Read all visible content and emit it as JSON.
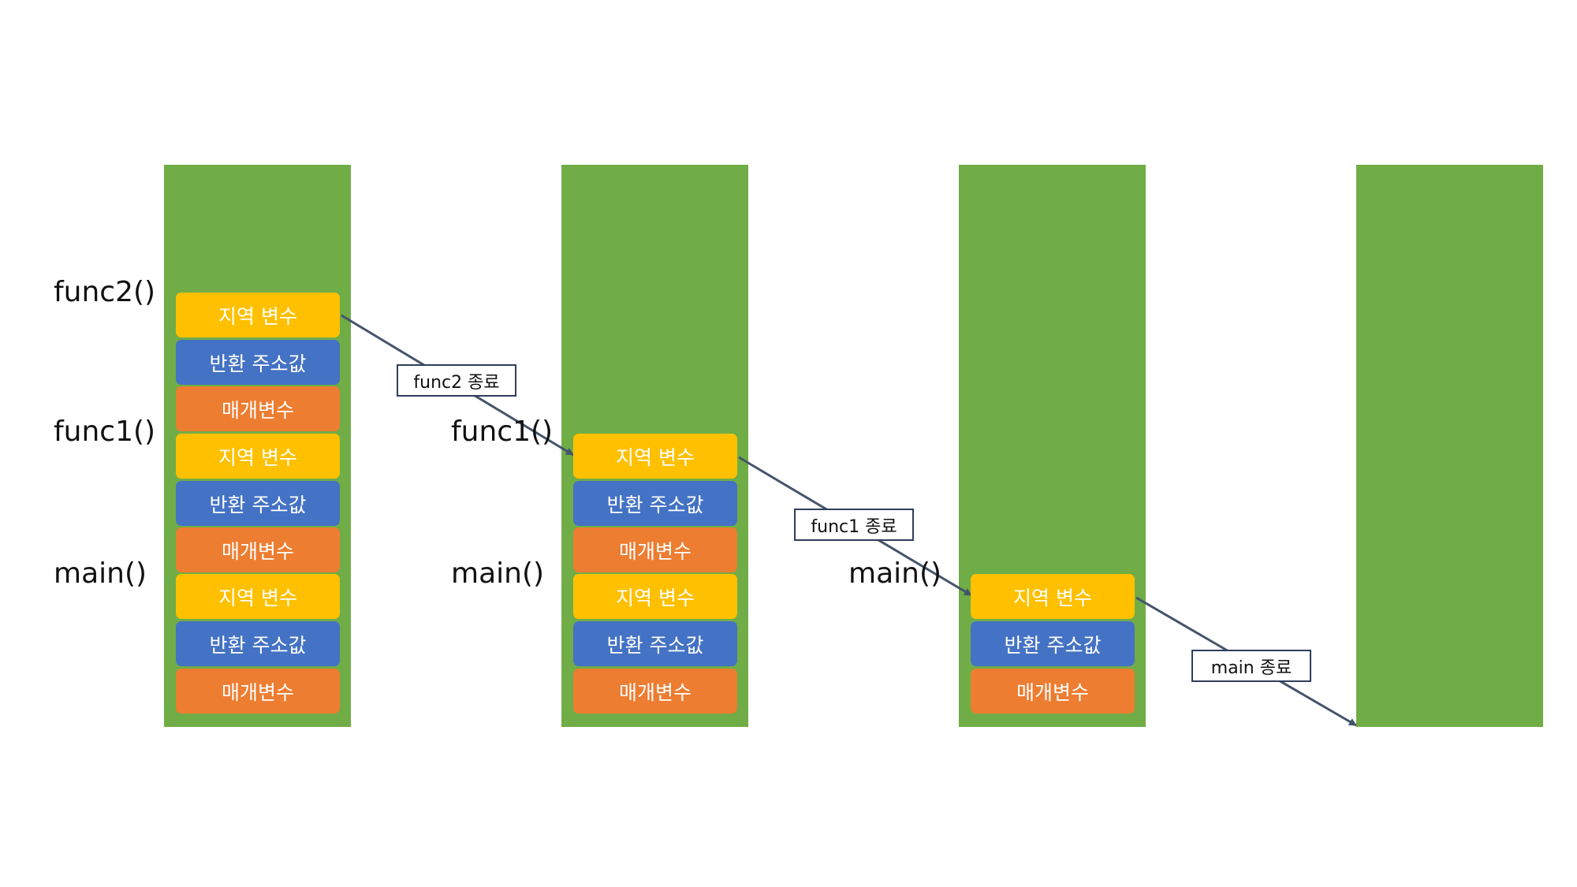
{
  "frames": {
    "func2": "func2()",
    "func1": "func1()",
    "main": "main()"
  },
  "block_labels": {
    "local": "지역 변수",
    "return_address": "반환 주소값",
    "params": "매개변수"
  },
  "transitions": {
    "func2_end": "func2 종료",
    "func1_end": "func1 종료",
    "main_end": "main 종료"
  },
  "colors": {
    "stack_background": "#70ad47",
    "local_variable": "#ffc000",
    "return_address": "#4472c4",
    "parameter": "#ed7d31",
    "arrow": "#44546a"
  }
}
